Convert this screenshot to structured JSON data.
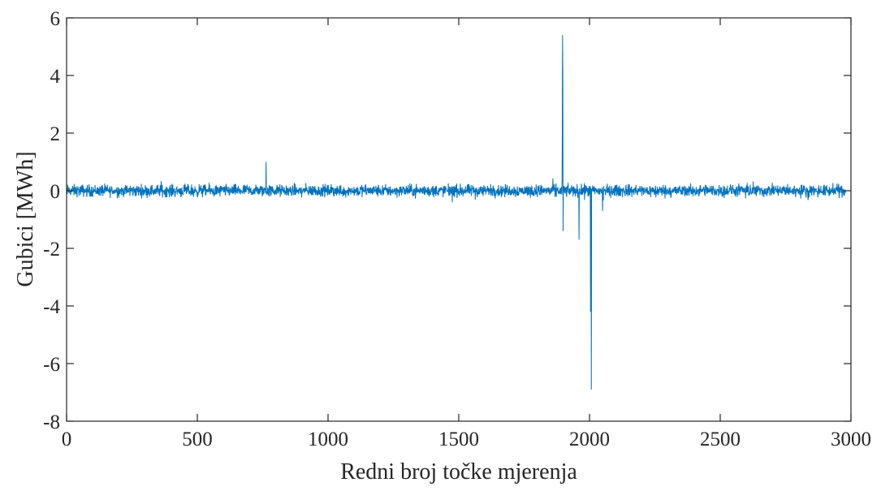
{
  "chart_data": {
    "type": "line",
    "title": "",
    "xlabel": "Redni broj točke mjerenja",
    "ylabel": "Gubici [MWh]",
    "xlim": [
      0,
      3000
    ],
    "ylim": [
      -8,
      6
    ],
    "xticks": [
      0,
      500,
      1000,
      1500,
      2000,
      2500,
      3000
    ],
    "yticks": [
      -8,
      -6,
      -4,
      -2,
      0,
      2,
      4,
      6
    ],
    "xtick_labels": [
      "0",
      "500",
      "1000",
      "1500",
      "2000",
      "2500",
      "3000"
    ],
    "ytick_labels": [
      "-8",
      "-6",
      "-4",
      "-2",
      "0",
      "2",
      "4",
      "6"
    ],
    "grid": false,
    "series": [
      {
        "color": "#0072BD",
        "points": 2980,
        "noise_amplitude": 0.3,
        "spikes": [
          {
            "x": 1897,
            "y": 5.4
          },
          {
            "x": 1898,
            "y": 4.1
          },
          {
            "x": 1896,
            "y": 2.2
          },
          {
            "x": 1899,
            "y": -1.4
          },
          {
            "x": 1960,
            "y": -1.7
          },
          {
            "x": 2004,
            "y": -4.2
          },
          {
            "x": 2007,
            "y": -6.9
          },
          {
            "x": 2050,
            "y": -0.7
          },
          {
            "x": 763,
            "y": 1.0
          }
        ]
      }
    ]
  }
}
